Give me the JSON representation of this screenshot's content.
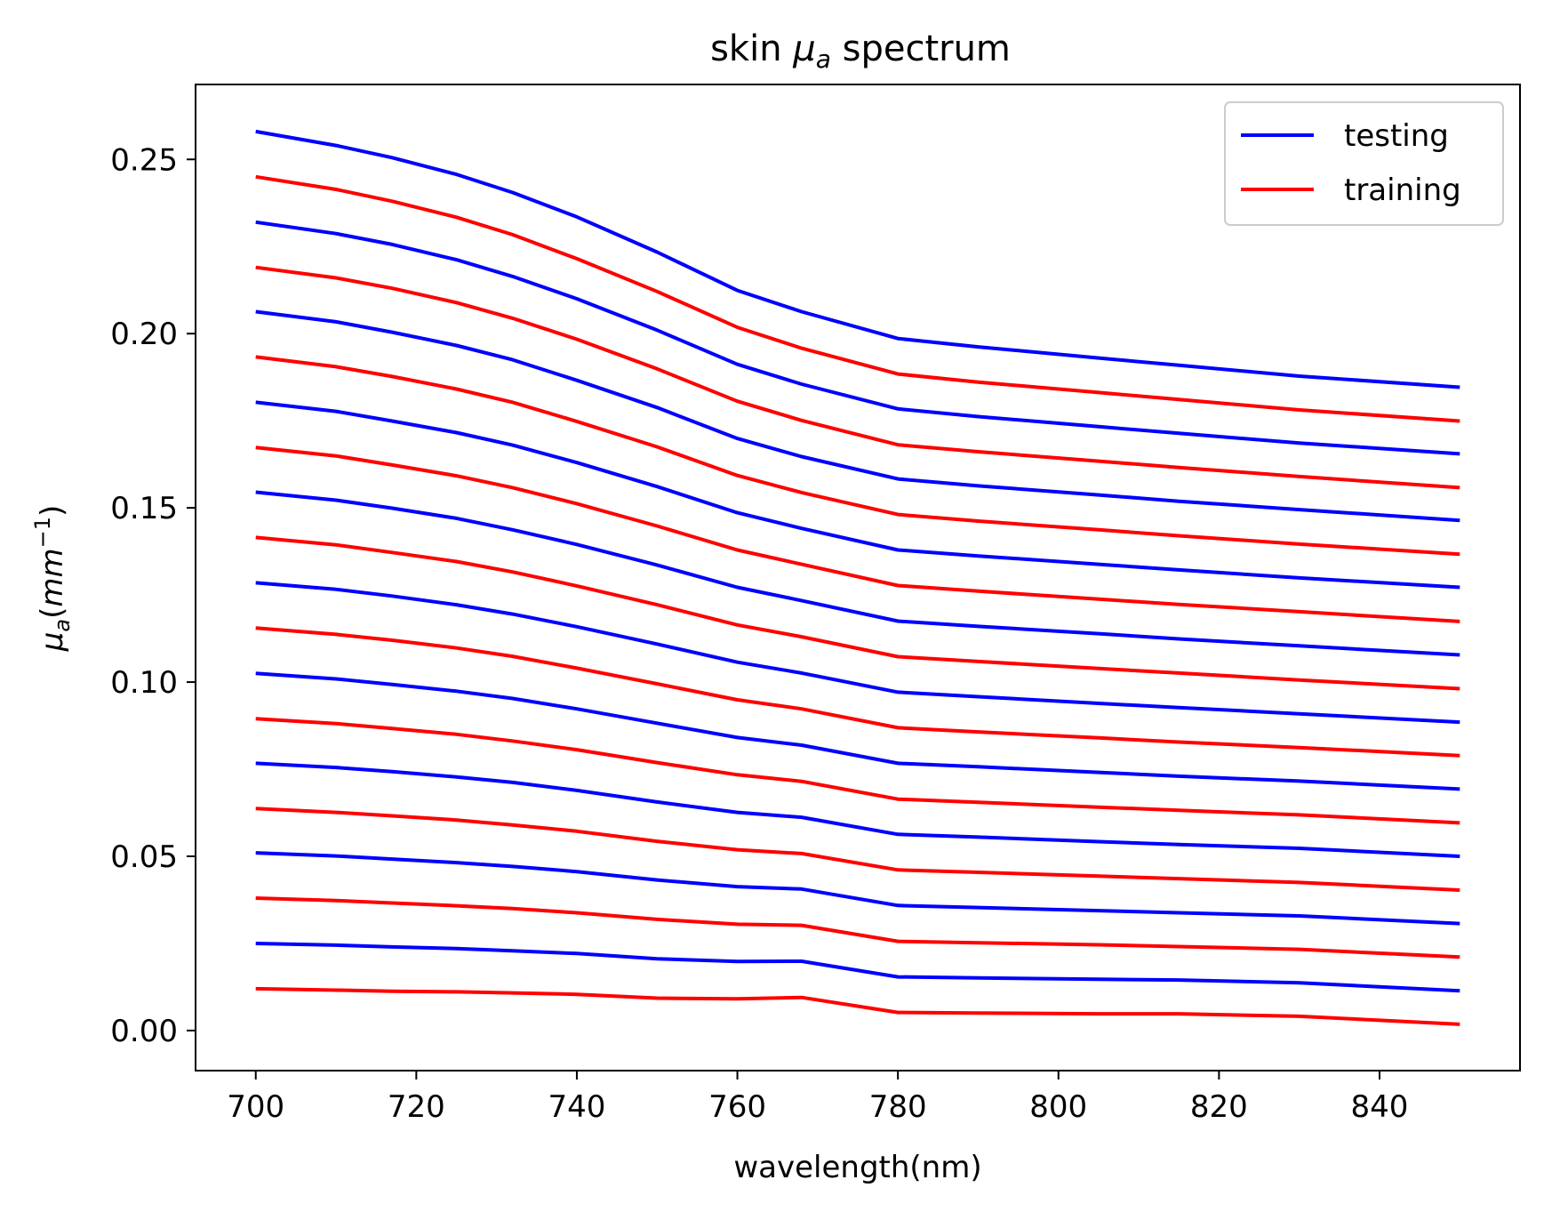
{
  "chart_data": {
    "type": "line",
    "title": "skin μa spectrum",
    "title_parts": {
      "pre": "skin ",
      "mu": "μ",
      "sub": "a",
      "post": " spectrum"
    },
    "xlabel": "wavelength(nm)",
    "ylabel_parts": {
      "mu": "μ",
      "sub": "a",
      "open": "(",
      "unit": "mm",
      "sup": "−1",
      "close": ")"
    },
    "xlim": [
      692.5,
      857.5
    ],
    "ylim": [
      -0.0115,
      0.2715
    ],
    "xticks": [
      700,
      720,
      740,
      760,
      780,
      800,
      820,
      840
    ],
    "xtick_labels": [
      "700",
      "720",
      "740",
      "760",
      "780",
      "800",
      "820",
      "840"
    ],
    "yticks": [
      0.0,
      0.05,
      0.1,
      0.15,
      0.2,
      0.25
    ],
    "ytick_labels": [
      "0.00",
      "0.05",
      "0.10",
      "0.15",
      "0.20",
      "0.25"
    ],
    "legend": {
      "placement": "top-right",
      "entries": [
        {
          "label": "testing",
          "color": "#0000ff"
        },
        {
          "label": "training",
          "color": "#ff0000"
        }
      ]
    },
    "x": [
      700,
      710,
      717,
      725,
      732,
      740,
      750,
      760,
      768,
      780,
      790,
      805,
      815,
      830,
      850
    ],
    "series": [
      {
        "group": "testing",
        "color": "#0000ff",
        "values": [
          0.258,
          0.254,
          0.2505,
          0.2457,
          0.2405,
          0.2335,
          0.2234,
          0.2124,
          0.2063,
          0.1986,
          0.1962,
          0.193,
          0.1909,
          0.1878,
          0.1846
        ]
      },
      {
        "group": "training",
        "color": "#ff0000",
        "values": [
          0.245,
          0.2414,
          0.238,
          0.2334,
          0.2284,
          0.2215,
          0.2121,
          0.2018,
          0.1958,
          0.1884,
          0.1861,
          0.1831,
          0.1811,
          0.1781,
          0.1749
        ]
      },
      {
        "group": "testing",
        "color": "#0000ff",
        "values": [
          0.232,
          0.2287,
          0.2256,
          0.2212,
          0.2164,
          0.21,
          0.201,
          0.1912,
          0.1855,
          0.1784,
          0.1762,
          0.1733,
          0.1714,
          0.1686,
          0.1655
        ]
      },
      {
        "group": "training",
        "color": "#ff0000",
        "values": [
          0.219,
          0.216,
          0.213,
          0.2089,
          0.2044,
          0.1984,
          0.1899,
          0.1806,
          0.1751,
          0.1681,
          0.1661,
          0.1634,
          0.1616,
          0.159,
          0.1558
        ]
      },
      {
        "group": "testing",
        "color": "#0000ff",
        "values": [
          0.2063,
          0.2034,
          0.2004,
          0.1966,
          0.1925,
          0.1866,
          0.1788,
          0.1699,
          0.1647,
          0.1583,
          0.1563,
          0.1537,
          0.1519,
          0.1495,
          0.1464
        ]
      },
      {
        "group": "training",
        "color": "#ff0000",
        "values": [
          0.1933,
          0.1905,
          0.1877,
          0.1841,
          0.1803,
          0.1748,
          0.1675,
          0.1593,
          0.1544,
          0.1481,
          0.1462,
          0.1437,
          0.142,
          0.1396,
          0.1367
        ]
      },
      {
        "group": "testing",
        "color": "#0000ff",
        "values": [
          0.1803,
          0.1777,
          0.1749,
          0.1716,
          0.168,
          0.163,
          0.1561,
          0.1486,
          0.1441,
          0.1379,
          0.1362,
          0.1338,
          0.1322,
          0.1299,
          0.1272
        ]
      },
      {
        "group": "training",
        "color": "#ff0000",
        "values": [
          0.1673,
          0.1649,
          0.1623,
          0.1592,
          0.1558,
          0.1512,
          0.1448,
          0.1379,
          0.1338,
          0.1277,
          0.1261,
          0.1238,
          0.1223,
          0.1202,
          0.1174
        ]
      },
      {
        "group": "testing",
        "color": "#0000ff",
        "values": [
          0.1545,
          0.1522,
          0.1499,
          0.147,
          0.1437,
          0.1395,
          0.1336,
          0.1272,
          0.1234,
          0.1175,
          0.116,
          0.1139,
          0.1124,
          0.1104,
          0.1078
        ]
      },
      {
        "group": "training",
        "color": "#ff0000",
        "values": [
          0.1415,
          0.1394,
          0.1372,
          0.1346,
          0.1316,
          0.1276,
          0.1222,
          0.1164,
          0.113,
          0.1073,
          0.1059,
          0.1039,
          0.1026,
          0.1006,
          0.0981
        ]
      },
      {
        "group": "testing",
        "color": "#0000ff",
        "values": [
          0.1285,
          0.1266,
          0.1247,
          0.1222,
          0.1195,
          0.1159,
          0.1109,
          0.1057,
          0.1026,
          0.0971,
          0.0958,
          0.0939,
          0.0927,
          0.0909,
          0.0885
        ]
      },
      {
        "group": "training",
        "color": "#ff0000",
        "values": [
          0.1155,
          0.1137,
          0.112,
          0.1098,
          0.1074,
          0.104,
          0.0995,
          0.0949,
          0.0923,
          0.0869,
          0.0857,
          0.084,
          0.0828,
          0.0812,
          0.0789
        ]
      },
      {
        "group": "testing",
        "color": "#0000ff",
        "values": [
          0.1025,
          0.1009,
          0.0993,
          0.0974,
          0.0953,
          0.0923,
          0.0882,
          0.0841,
          0.0819,
          0.0767,
          0.0757,
          0.0741,
          0.073,
          0.0716,
          0.0693
        ]
      },
      {
        "group": "training",
        "color": "#ff0000",
        "values": [
          0.0895,
          0.0881,
          0.0867,
          0.085,
          0.0831,
          0.0806,
          0.0769,
          0.0734,
          0.0715,
          0.0664,
          0.0655,
          0.0641,
          0.0632,
          0.0619,
          0.0596
        ]
      },
      {
        "group": "testing",
        "color": "#0000ff",
        "values": [
          0.0767,
          0.0755,
          0.0743,
          0.0728,
          0.0712,
          0.0689,
          0.0656,
          0.0626,
          0.0612,
          0.0563,
          0.0555,
          0.0542,
          0.0534,
          0.0523,
          0.05
        ]
      },
      {
        "group": "training",
        "color": "#ff0000",
        "values": [
          0.0637,
          0.0626,
          0.0616,
          0.0604,
          0.059,
          0.0572,
          0.0543,
          0.0519,
          0.0508,
          0.0461,
          0.0454,
          0.0443,
          0.0436,
          0.0425,
          0.0403
        ]
      },
      {
        "group": "testing",
        "color": "#0000ff",
        "values": [
          0.051,
          0.0501,
          0.0492,
          0.0482,
          0.0471,
          0.0456,
          0.0432,
          0.0413,
          0.0406,
          0.0359,
          0.0353,
          0.0344,
          0.0338,
          0.0329,
          0.0307
        ]
      },
      {
        "group": "training",
        "color": "#ff0000",
        "values": [
          0.038,
          0.0373,
          0.0366,
          0.0358,
          0.035,
          0.0338,
          0.0319,
          0.0305,
          0.0302,
          0.0256,
          0.0252,
          0.0246,
          0.0241,
          0.0233,
          0.0211
        ]
      },
      {
        "group": "testing",
        "color": "#0000ff",
        "values": [
          0.025,
          0.0245,
          0.024,
          0.0235,
          0.0229,
          0.0221,
          0.0206,
          0.0198,
          0.0199,
          0.0154,
          0.0151,
          0.0147,
          0.0145,
          0.0137,
          0.0114
        ]
      },
      {
        "group": "training",
        "color": "#ff0000",
        "values": [
          0.012,
          0.0116,
          0.0113,
          0.0111,
          0.0108,
          0.0104,
          0.0093,
          0.0091,
          0.0095,
          0.0052,
          0.005,
          0.0048,
          0.0048,
          0.0041,
          0.0018
        ]
      }
    ]
  }
}
